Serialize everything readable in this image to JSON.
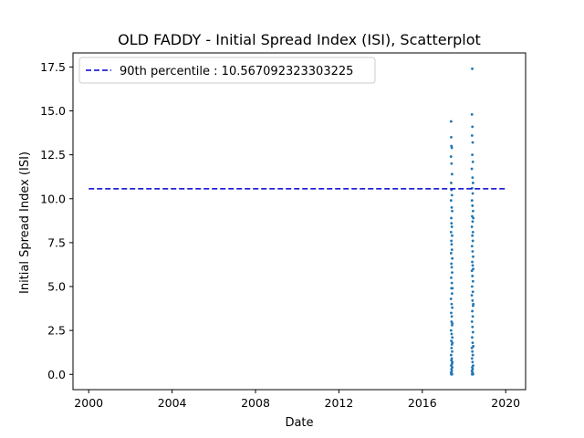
{
  "chart_data": {
    "type": "scatter",
    "title": "OLD FADDY - Initial Spread Index (ISI), Scatterplot",
    "xlabel": "Date",
    "ylabel": "Initial Spread Index (ISI)",
    "x_ticks": [
      "2000",
      "2004",
      "2008",
      "2012",
      "2016",
      "2020"
    ],
    "y_ticks": [
      "0.0",
      "2.5",
      "5.0",
      "7.5",
      "10.0",
      "12.5",
      "15.0",
      "17.5"
    ],
    "xlim": [
      "1999-04-01",
      "2020-12-15"
    ],
    "ylim": [
      -0.87,
      18.3
    ],
    "grid": false,
    "legend_position": "top-left",
    "reference_line": {
      "label": "90th percentile : 10.567092323303225",
      "value": 10.567092323303225,
      "x_start": "2000-01-01",
      "x_end": "2020-01-01",
      "style": "dashed",
      "color": "#0000cc"
    },
    "series": [
      {
        "color": "#1f77b4",
        "points": [
          [
            "2017-05-20",
            14.4
          ],
          [
            "2017-05-22",
            13.5
          ],
          [
            "2017-05-25",
            13.0
          ],
          [
            "2017-06-01",
            12.9
          ],
          [
            "2017-05-18",
            12.4
          ],
          [
            "2017-05-28",
            12.0
          ],
          [
            "2017-06-05",
            11.4
          ],
          [
            "2017-05-21",
            10.9
          ],
          [
            "2017-05-26",
            10.5
          ],
          [
            "2017-06-03",
            10.2
          ],
          [
            "2017-05-19",
            9.9
          ],
          [
            "2017-05-30",
            9.5
          ],
          [
            "2017-06-08",
            9.3
          ],
          [
            "2017-05-23",
            8.9
          ],
          [
            "2017-05-27",
            8.6
          ],
          [
            "2017-06-02",
            8.4
          ],
          [
            "2017-05-19",
            8.1
          ],
          [
            "2017-06-06",
            7.9
          ],
          [
            "2017-05-24",
            7.6
          ],
          [
            "2017-05-29",
            7.4
          ],
          [
            "2017-06-04",
            7.1
          ],
          [
            "2017-05-20",
            6.9
          ],
          [
            "2017-06-09",
            6.6
          ],
          [
            "2017-05-25",
            6.3
          ],
          [
            "2017-05-31",
            6.1
          ],
          [
            "2017-06-07",
            5.8
          ],
          [
            "2017-05-22",
            5.5
          ],
          [
            "2017-06-02",
            5.2
          ],
          [
            "2017-05-26",
            4.9
          ],
          [
            "2017-06-05",
            4.6
          ],
          [
            "2017-05-18",
            4.3
          ],
          [
            "2017-05-29",
            4.0
          ],
          [
            "2017-06-08",
            3.8
          ],
          [
            "2017-05-21",
            3.5
          ],
          [
            "2017-06-01",
            3.3
          ],
          [
            "2017-05-27",
            3.0
          ],
          [
            "2017-06-06",
            2.8
          ],
          [
            "2017-05-19",
            2.5
          ],
          [
            "2017-05-30",
            2.3
          ],
          [
            "2017-06-10",
            2.1
          ],
          [
            "2017-05-23",
            1.9
          ],
          [
            "2017-06-03",
            1.7
          ],
          [
            "2017-05-28",
            1.5
          ],
          [
            "2017-06-07",
            1.3
          ],
          [
            "2017-05-20",
            1.1
          ],
          [
            "2017-06-01",
            0.9
          ],
          [
            "2017-05-25",
            0.8
          ],
          [
            "2017-06-04",
            0.6
          ],
          [
            "2017-05-22",
            0.5
          ],
          [
            "2017-06-09",
            0.4
          ],
          [
            "2017-05-26",
            0.3
          ],
          [
            "2017-06-02",
            0.2
          ],
          [
            "2017-05-19",
            0.1
          ],
          [
            "2017-05-29",
            0.05
          ],
          [
            "2017-06-06",
            0.0
          ],
          [
            "2017-05-24",
            0.0
          ],
          [
            "2017-06-11",
            0.7
          ],
          [
            "2017-06-12",
            1.8
          ],
          [
            "2017-06-10",
            2.9
          ],
          [
            "2017-06-12",
            4.9
          ],
          [
            "2018-05-25",
            17.4
          ],
          [
            "2018-05-20",
            14.8
          ],
          [
            "2018-05-28",
            14.1
          ],
          [
            "2018-05-22",
            13.6
          ],
          [
            "2018-06-02",
            13.2
          ],
          [
            "2018-05-26",
            12.5
          ],
          [
            "2018-06-05",
            12.1
          ],
          [
            "2018-05-18",
            11.7
          ],
          [
            "2018-05-30",
            11.2
          ],
          [
            "2018-06-07",
            10.9
          ],
          [
            "2018-05-23",
            10.6
          ],
          [
            "2018-06-03",
            10.3
          ],
          [
            "2018-05-21",
            9.9
          ],
          [
            "2018-05-29",
            9.6
          ],
          [
            "2018-06-08",
            9.3
          ],
          [
            "2018-05-24",
            9.0
          ],
          [
            "2018-06-01",
            8.7
          ],
          [
            "2018-05-19",
            8.4
          ],
          [
            "2018-06-06",
            8.1
          ],
          [
            "2018-05-27",
            7.9
          ],
          [
            "2018-06-04",
            7.6
          ],
          [
            "2018-05-22",
            7.3
          ],
          [
            "2018-05-31",
            7.0
          ],
          [
            "2018-06-09",
            6.7
          ],
          [
            "2018-05-25",
            6.4
          ],
          [
            "2018-06-02",
            6.2
          ],
          [
            "2018-05-20",
            5.9
          ],
          [
            "2018-05-28",
            5.6
          ],
          [
            "2018-06-07",
            5.3
          ],
          [
            "2018-05-23",
            5.0
          ],
          [
            "2018-06-05",
            4.7
          ],
          [
            "2018-05-18",
            4.5
          ],
          [
            "2018-05-30",
            4.2
          ],
          [
            "2018-06-08",
            3.9
          ],
          [
            "2018-05-26",
            3.6
          ],
          [
            "2018-06-03",
            3.3
          ],
          [
            "2018-05-21",
            3.0
          ],
          [
            "2018-05-29",
            2.7
          ],
          [
            "2018-06-06",
            2.4
          ],
          [
            "2018-05-24",
            2.1
          ],
          [
            "2018-06-01",
            1.8
          ],
          [
            "2018-05-19",
            1.5
          ],
          [
            "2018-05-27",
            1.3
          ],
          [
            "2018-06-04",
            1.1
          ],
          [
            "2018-05-22",
            0.9
          ],
          [
            "2018-05-31",
            0.7
          ],
          [
            "2018-06-09",
            0.5
          ],
          [
            "2018-05-25",
            0.4
          ],
          [
            "2018-06-02",
            0.3
          ],
          [
            "2018-05-20",
            0.2
          ],
          [
            "2018-05-28",
            0.1
          ],
          [
            "2018-06-07",
            0.0
          ],
          [
            "2018-05-23",
            0.0
          ],
          [
            "2018-06-05",
            0.05
          ],
          [
            "2018-06-11",
            1.6
          ],
          [
            "2018-06-12",
            4.0
          ],
          [
            "2018-06-10",
            6.0
          ],
          [
            "2018-06-12",
            8.9
          ]
        ]
      }
    ]
  }
}
